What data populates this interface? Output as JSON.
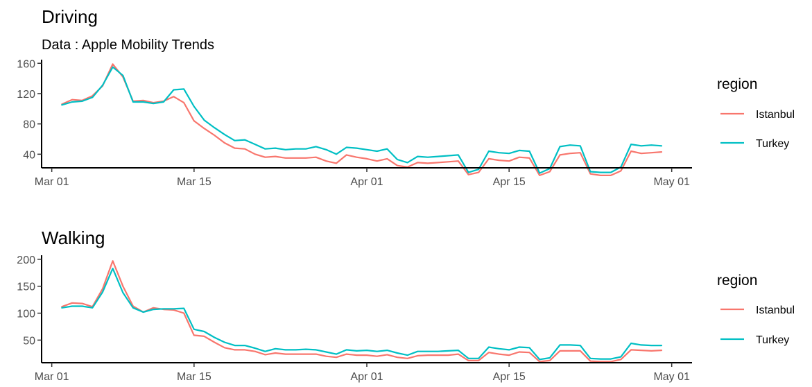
{
  "colors": {
    "Istanbul": "#F8766D",
    "Turkey": "#00BFC4"
  },
  "chart_data": [
    {
      "type": "line",
      "title": "Driving",
      "subtitle": "Data : Apple Mobility Trends",
      "xlabel": "",
      "ylabel": "",
      "x_start": "2020-03-02",
      "x_ticks": [
        "Mar 01",
        "Mar 15",
        "Apr 01",
        "Apr 15",
        "May 01"
      ],
      "y_ticks": [
        40,
        80,
        120,
        160
      ],
      "ylim": [
        22,
        163
      ],
      "legend": {
        "title": "region",
        "position": "right",
        "entries": [
          "Istanbul",
          "Turkey"
        ]
      },
      "grid": false,
      "series": [
        {
          "name": "Istanbul",
          "values": [
            106,
            112,
            111,
            117,
            130,
            159,
            142,
            110,
            111,
            108,
            110,
            116,
            108,
            84,
            74,
            65,
            55,
            48,
            47,
            40,
            36,
            37,
            35,
            35,
            35,
            36,
            31,
            28,
            39,
            36,
            34,
            31,
            34,
            25,
            23,
            29,
            28,
            29,
            30,
            31,
            13,
            16,
            34,
            32,
            31,
            36,
            35,
            12,
            17,
            39,
            41,
            42,
            14,
            12,
            12,
            18,
            44,
            41,
            42,
            43
          ],
          "legend_color": "#F8766D"
        },
        {
          "name": "Turkey",
          "values": [
            105,
            109,
            110,
            115,
            131,
            155,
            144,
            109,
            109,
            107,
            109,
            125,
            126,
            103,
            85,
            75,
            66,
            58,
            59,
            53,
            47,
            48,
            46,
            47,
            47,
            50,
            46,
            40,
            49,
            48,
            46,
            44,
            47,
            33,
            29,
            37,
            36,
            37,
            38,
            39,
            16,
            20,
            44,
            42,
            41,
            45,
            44,
            15,
            21,
            50,
            52,
            51,
            17,
            16,
            16,
            23,
            53,
            51,
            52,
            51
          ],
          "legend_color": "#00BFC4"
        }
      ]
    },
    {
      "type": "line",
      "title": "Walking",
      "subtitle": "",
      "xlabel": "",
      "ylabel": "",
      "x_start": "2020-03-02",
      "x_ticks": [
        "Mar 01",
        "Mar 15",
        "Apr 01",
        "Apr 15",
        "May 01"
      ],
      "y_ticks": [
        50,
        100,
        150,
        200
      ],
      "ylim": [
        8,
        205
      ],
      "legend": {
        "title": "region",
        "position": "right",
        "entries": [
          "Istanbul",
          "Turkey"
        ]
      },
      "grid": false,
      "series": [
        {
          "name": "Istanbul",
          "values": [
            112,
            119,
            118,
            112,
            145,
            197,
            150,
            113,
            102,
            110,
            107,
            106,
            100,
            59,
            57,
            46,
            36,
            32,
            32,
            29,
            23,
            26,
            24,
            24,
            24,
            24,
            20,
            18,
            24,
            22,
            22,
            20,
            23,
            18,
            16,
            21,
            22,
            22,
            22,
            24,
            12,
            12,
            27,
            24,
            22,
            28,
            27,
            10,
            12,
            30,
            30,
            30,
            11,
            10,
            10,
            14,
            32,
            31,
            30,
            31
          ],
          "legend_color": "#F8766D"
        },
        {
          "name": "Turkey",
          "values": [
            110,
            113,
            113,
            110,
            139,
            183,
            138,
            110,
            102,
            107,
            108,
            108,
            109,
            70,
            66,
            55,
            46,
            40,
            40,
            35,
            29,
            34,
            32,
            32,
            33,
            32,
            28,
            24,
            32,
            30,
            31,
            29,
            31,
            26,
            22,
            29,
            29,
            29,
            30,
            31,
            16,
            16,
            37,
            34,
            32,
            37,
            36,
            14,
            17,
            41,
            41,
            40,
            16,
            15,
            15,
            19,
            44,
            41,
            40,
            40
          ],
          "legend_color": "#00BFC4"
        }
      ]
    }
  ]
}
